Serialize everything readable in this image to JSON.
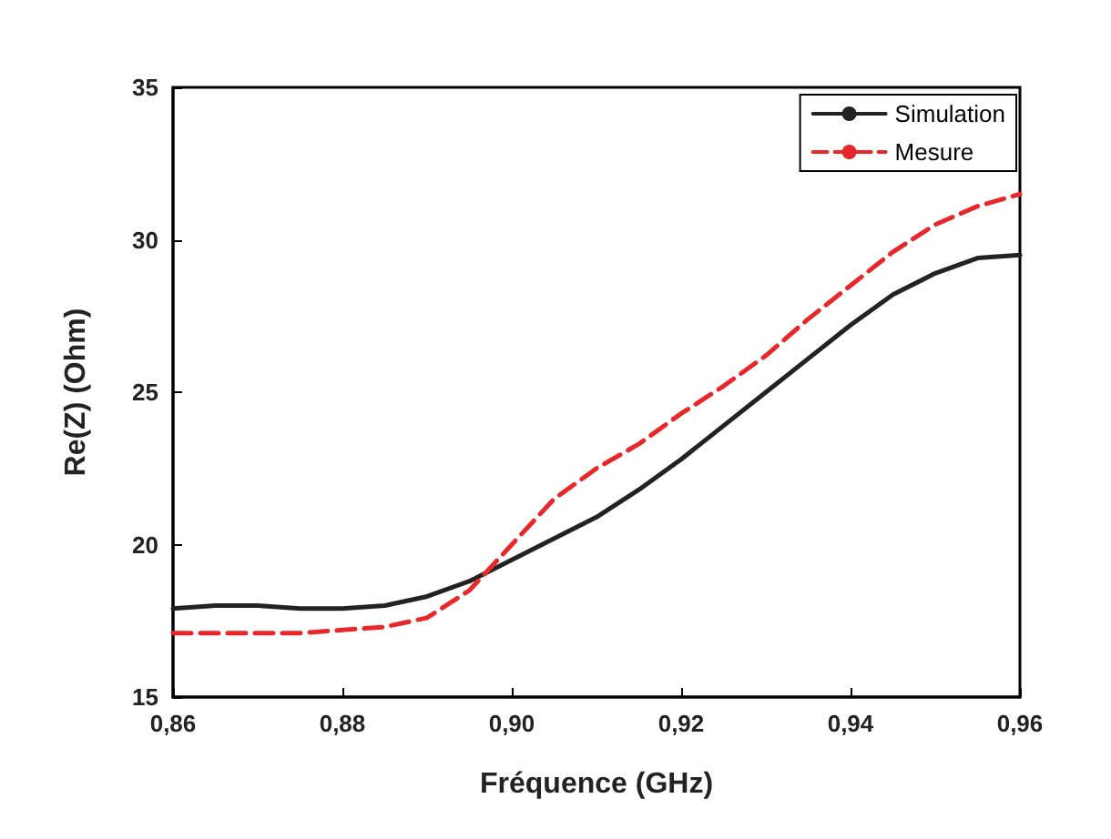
{
  "chart_data": {
    "type": "line",
    "xlabel": "Fréquence (GHz)",
    "ylabel": "Re(Z) (Ohm)",
    "xlim": [
      0.86,
      0.96
    ],
    "xticks": [
      {
        "value": 0.86,
        "label": "0,86"
      },
      {
        "value": 0.88,
        "label": "0,88"
      },
      {
        "value": 0.9,
        "label": "0,90"
      },
      {
        "value": 0.92,
        "label": "0,92"
      },
      {
        "value": 0.94,
        "label": "0,94"
      },
      {
        "value": 0.96,
        "label": "0,96"
      }
    ],
    "ylim": [
      15,
      35
    ],
    "yticks": [
      15,
      20,
      25,
      30,
      35
    ],
    "grid": false,
    "legend": "top right",
    "marker": "none",
    "series": [
      {
        "name": "Simulation",
        "color": "#222222",
        "line_style": "solid",
        "x": [
          0.86,
          0.865,
          0.87,
          0.875,
          0.88,
          0.885,
          0.89,
          0.895,
          0.9,
          0.905,
          0.91,
          0.915,
          0.92,
          0.925,
          0.93,
          0.935,
          0.94,
          0.945,
          0.95,
          0.955,
          0.96
        ],
        "values": [
          17.9,
          18.0,
          18.0,
          17.9,
          17.9,
          18.0,
          18.3,
          18.8,
          19.5,
          20.2,
          20.9,
          21.8,
          22.8,
          23.9,
          25.0,
          26.1,
          27.2,
          28.2,
          28.9,
          29.4,
          29.5
        ]
      },
      {
        "name": "Mesure",
        "color": "#e8272a",
        "line_style": "dashed",
        "x": [
          0.86,
          0.865,
          0.87,
          0.875,
          0.88,
          0.885,
          0.89,
          0.895,
          0.9,
          0.905,
          0.91,
          0.915,
          0.92,
          0.925,
          0.93,
          0.935,
          0.94,
          0.945,
          0.95,
          0.955,
          0.96
        ],
        "values": [
          17.1,
          17.1,
          17.1,
          17.1,
          17.2,
          17.3,
          17.6,
          18.5,
          20.0,
          21.5,
          22.5,
          23.3,
          24.3,
          25.2,
          26.2,
          27.4,
          28.5,
          29.6,
          30.5,
          31.1,
          31.5
        ]
      }
    ]
  }
}
